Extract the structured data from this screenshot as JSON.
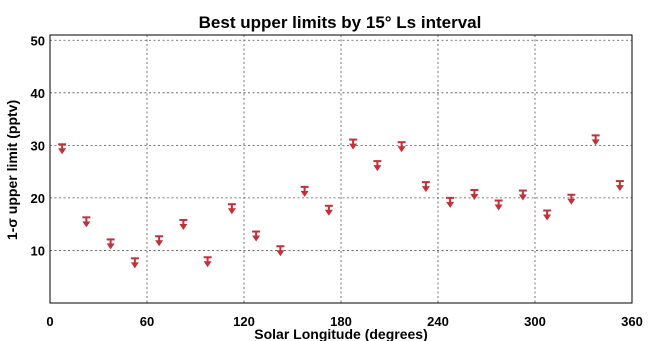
{
  "chart_data": {
    "type": "scatter",
    "title": "Best upper limits by 15° Ls interval",
    "xlabel": "Solar Longitude (degrees)",
    "ylabel": "1-σ upper limit (pptv)",
    "xlim": [
      0,
      360
    ],
    "ylim": [
      0,
      51
    ],
    "xticks": [
      0,
      60,
      120,
      180,
      240,
      300,
      360
    ],
    "yticks": [
      10,
      20,
      30,
      40,
      50
    ],
    "grid": true,
    "marker": "upper-limit-arrow",
    "marker_color": "#c0313a",
    "x": [
      7.5,
      22.5,
      37.5,
      52.5,
      67.5,
      82.5,
      97.5,
      112.5,
      127.5,
      142.5,
      157.5,
      172.5,
      187.5,
      202.5,
      217.5,
      232.5,
      247.5,
      262.5,
      277.5,
      292.5,
      307.5,
      322.5,
      337.5,
      352.5
    ],
    "y": [
      30.2,
      16.3,
      12.1,
      8.5,
      12.7,
      15.8,
      8.7,
      18.8,
      13.6,
      10.8,
      22.1,
      18.5,
      31.1,
      27.0,
      30.6,
      23.0,
      20.0,
      21.5,
      19.5,
      21.4,
      17.6,
      20.6,
      31.9,
      23.2
    ]
  }
}
